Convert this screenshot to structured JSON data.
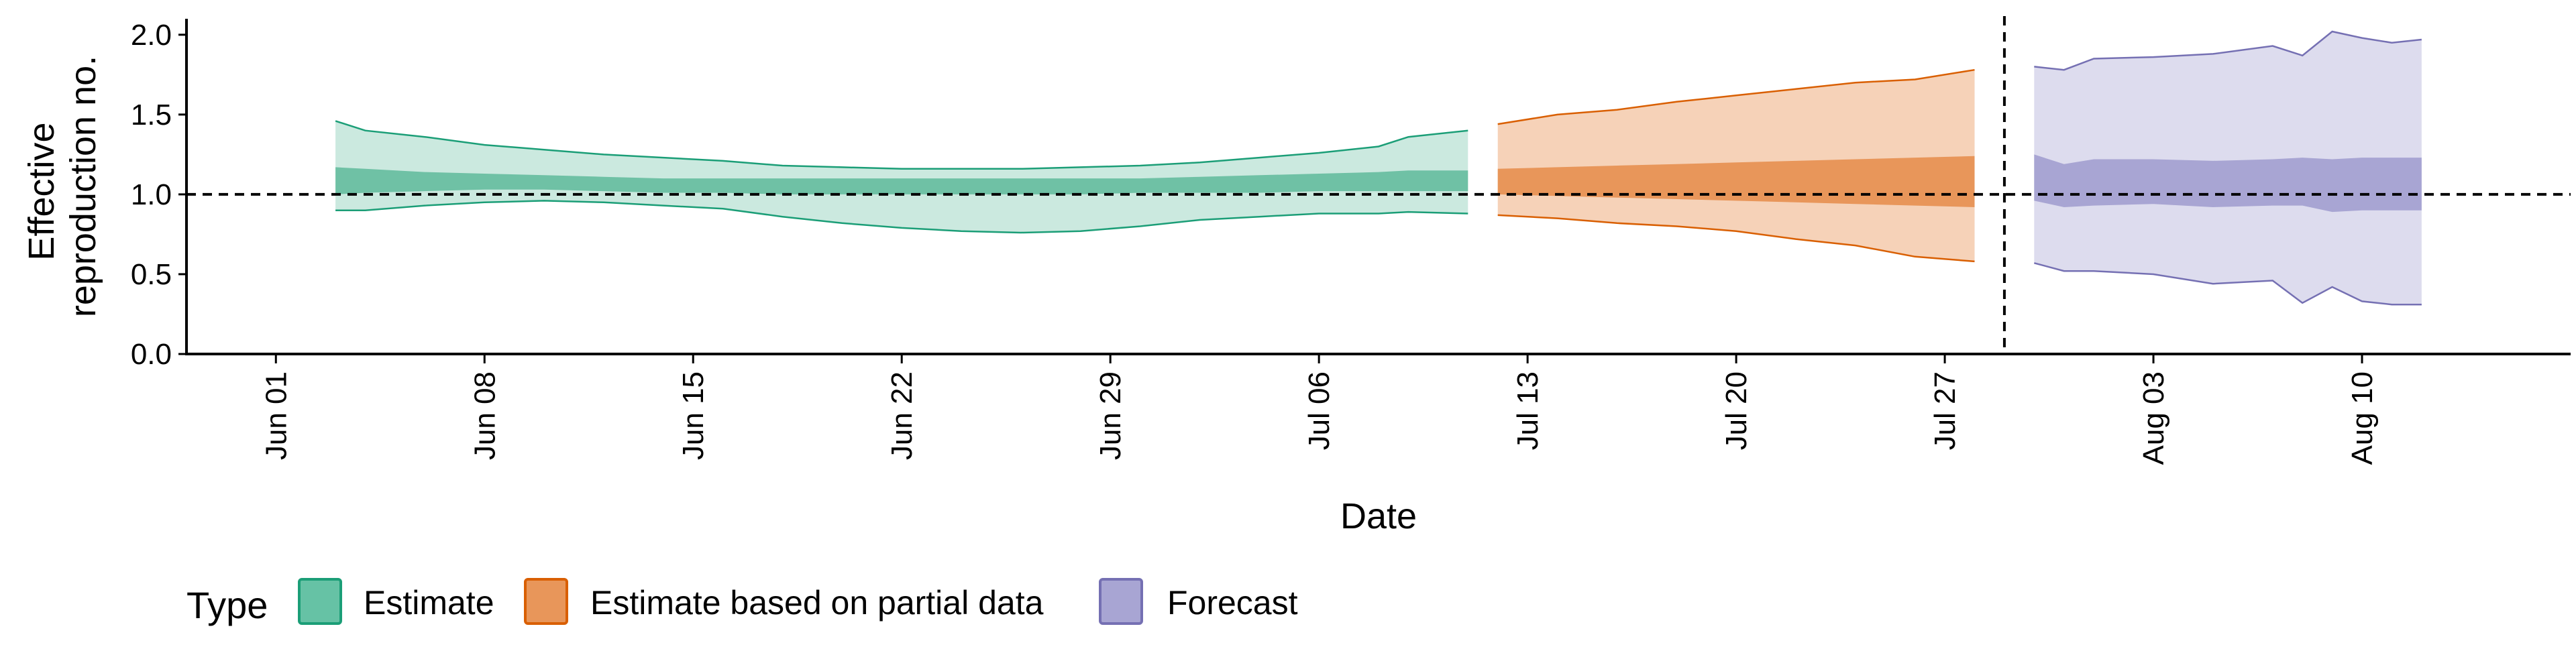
{
  "chart_data": {
    "type": "area",
    "xlabel": "Date",
    "ylabel_lines": [
      "Effective",
      "reproduction no."
    ],
    "ylim": [
      0,
      2.1
    ],
    "xlim": [
      "2020-05-29",
      "2020-08-17"
    ],
    "y_ticks": [
      0.0,
      0.5,
      1.0,
      1.5,
      2.0
    ],
    "y_tick_labels": [
      "0.0",
      "0.5",
      "1.0",
      "1.5",
      "2.0"
    ],
    "x_ticks": [
      "2020-06-01",
      "2020-06-08",
      "2020-06-15",
      "2020-06-22",
      "2020-06-29",
      "2020-07-06",
      "2020-07-13",
      "2020-07-20",
      "2020-07-27",
      "2020-08-03",
      "2020-08-10"
    ],
    "x_tick_labels": [
      "Jun 01",
      "Jun 08",
      "Jun 15",
      "Jun 22",
      "Jun 29",
      "Jul 06",
      "Jul 13",
      "Jul 20",
      "Jul 27",
      "Aug 03",
      "Aug 10"
    ],
    "reference_hline": 1.0,
    "reference_vline": "2020-07-29",
    "grid": false,
    "legend": {
      "title": "Type",
      "position": "bottom",
      "items": [
        {
          "label": "Estimate",
          "fill": "#66c2a5",
          "stroke": "#1b9e77"
        },
        {
          "label": "Estimate based on partial data",
          "fill": "#e8965a",
          "stroke": "#d95f02"
        },
        {
          "label": "Forecast",
          "fill": "#a8a5d3",
          "stroke": "#7570b3"
        }
      ]
    },
    "series": [
      {
        "name": "Estimate",
        "outer_fill": "#cbe9df",
        "inner_fill": "#6fc1a5",
        "stroke": "#1b9e77",
        "x": [
          "2020-06-03",
          "2020-06-04",
          "2020-06-06",
          "2020-06-08",
          "2020-06-10",
          "2020-06-12",
          "2020-06-14",
          "2020-06-16",
          "2020-06-18",
          "2020-06-20",
          "2020-06-22",
          "2020-06-24",
          "2020-06-26",
          "2020-06-28",
          "2020-06-30",
          "2020-07-02",
          "2020-07-04",
          "2020-07-06",
          "2020-07-08",
          "2020-07-09",
          "2020-07-11"
        ],
        "lower90": [
          0.9,
          0.9,
          0.93,
          0.95,
          0.96,
          0.95,
          0.93,
          0.91,
          0.86,
          0.82,
          0.79,
          0.77,
          0.76,
          0.77,
          0.8,
          0.84,
          0.86,
          0.88,
          0.88,
          0.89,
          0.88
        ],
        "lower50": [
          1.0,
          1.01,
          1.02,
          1.03,
          1.03,
          1.02,
          1.01,
          1.01,
          1.0,
          1.0,
          1.0,
          1.0,
          1.0,
          1.0,
          1.01,
          1.01,
          1.01,
          1.02,
          1.02,
          1.02,
          1.02
        ],
        "upper50": [
          1.17,
          1.16,
          1.14,
          1.13,
          1.12,
          1.11,
          1.1,
          1.1,
          1.1,
          1.1,
          1.1,
          1.1,
          1.1,
          1.1,
          1.1,
          1.11,
          1.12,
          1.13,
          1.14,
          1.15,
          1.15
        ],
        "upper90": [
          1.46,
          1.4,
          1.36,
          1.31,
          1.28,
          1.25,
          1.23,
          1.21,
          1.18,
          1.17,
          1.16,
          1.16,
          1.16,
          1.17,
          1.18,
          1.2,
          1.23,
          1.26,
          1.3,
          1.36,
          1.4
        ]
      },
      {
        "name": "Estimate based on partial data",
        "outer_fill": "#f6d2b8",
        "inner_fill": "#e8965a",
        "stroke": "#d95f02",
        "x": [
          "2020-07-12",
          "2020-07-14",
          "2020-07-16",
          "2020-07-18",
          "2020-07-20",
          "2020-07-22",
          "2020-07-24",
          "2020-07-26",
          "2020-07-28"
        ],
        "lower90": [
          0.87,
          0.85,
          0.82,
          0.8,
          0.77,
          0.72,
          0.68,
          0.61,
          0.58
        ],
        "lower50": [
          1.0,
          0.99,
          0.98,
          0.97,
          0.96,
          0.95,
          0.94,
          0.93,
          0.92
        ],
        "upper50": [
          1.16,
          1.17,
          1.18,
          1.19,
          1.2,
          1.21,
          1.22,
          1.23,
          1.24
        ],
        "upper90": [
          1.44,
          1.5,
          1.53,
          1.58,
          1.62,
          1.66,
          1.7,
          1.72,
          1.78
        ]
      },
      {
        "name": "Forecast",
        "outer_fill": "#dddcee",
        "inner_fill": "#a8a5d3",
        "stroke": "#7570b3",
        "x": [
          "2020-07-30",
          "2020-07-31",
          "2020-08-01",
          "2020-08-03",
          "2020-08-05",
          "2020-08-07",
          "2020-08-08",
          "2020-08-09",
          "2020-08-10",
          "2020-08-11",
          "2020-08-12"
        ],
        "lower90": [
          0.57,
          0.52,
          0.52,
          0.5,
          0.44,
          0.46,
          0.32,
          0.42,
          0.33,
          0.31,
          0.31
        ],
        "lower50": [
          0.96,
          0.92,
          0.93,
          0.94,
          0.92,
          0.93,
          0.93,
          0.89,
          0.9,
          0.9,
          0.9
        ],
        "upper50": [
          1.25,
          1.19,
          1.22,
          1.22,
          1.21,
          1.22,
          1.23,
          1.22,
          1.23,
          1.23,
          1.23
        ],
        "upper90": [
          1.8,
          1.78,
          1.85,
          1.86,
          1.88,
          1.93,
          1.87,
          2.02,
          1.98,
          1.95,
          1.97
        ]
      }
    ]
  }
}
